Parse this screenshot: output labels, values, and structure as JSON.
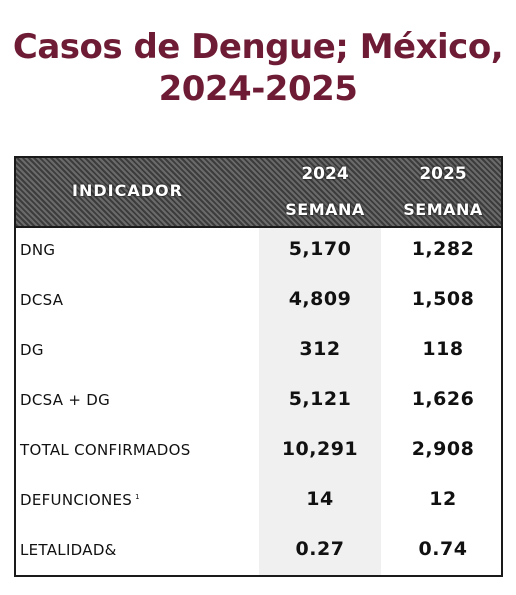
{
  "title": {
    "line1": "Casos de Dengue; México,",
    "line2": "2024-2025"
  },
  "table": {
    "header": {
      "indicador": "INDICADOR",
      "year_2024": "2024",
      "year_2025": "2025",
      "week_2024": "SEMANA",
      "week_2025": "SEMANA"
    },
    "rows": [
      {
        "label": "DNG",
        "v2024": "5,170",
        "v2025": "1,282"
      },
      {
        "label": "DCSA",
        "v2024": "4,809",
        "v2025": "1,508"
      },
      {
        "label": "DG",
        "v2024": "312",
        "v2025": "118"
      },
      {
        "label": "DCSA + DG",
        "v2024": "5,121",
        "v2025": "1,626"
      },
      {
        "label": "TOTAL CONFIRMADOS",
        "v2024": "10,291",
        "v2025": "2,908"
      },
      {
        "label": "DEFUNCIONES",
        "sup": "1",
        "v2024": "14",
        "v2025": "12"
      },
      {
        "label": "LETALIDAD&",
        "v2024": "0.27",
        "v2025": "0.74"
      }
    ]
  },
  "colors": {
    "title": "#6e1c35",
    "header_bg": "#4a4a4a",
    "column_shade": "#f0f0f0"
  }
}
